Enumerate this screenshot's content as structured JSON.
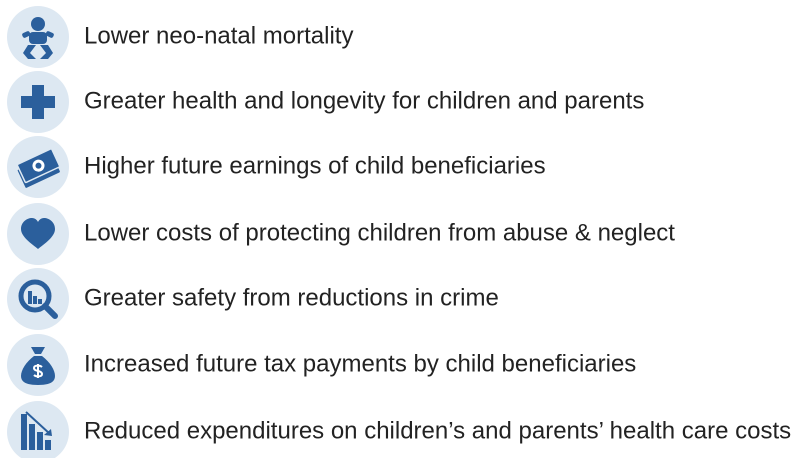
{
  "items": [
    "Lower neo-natal mortality",
    "Greater health and longevity for children and parents",
    "Higher future earnings of child beneficiaries",
    "Lower costs of protecting children from abuse & neglect",
    "Greater safety from reductions in crime",
    "Increased future tax payments by child beneficiaries",
    "Reduced expenditures on children’s and parents’ health care costs"
  ]
}
